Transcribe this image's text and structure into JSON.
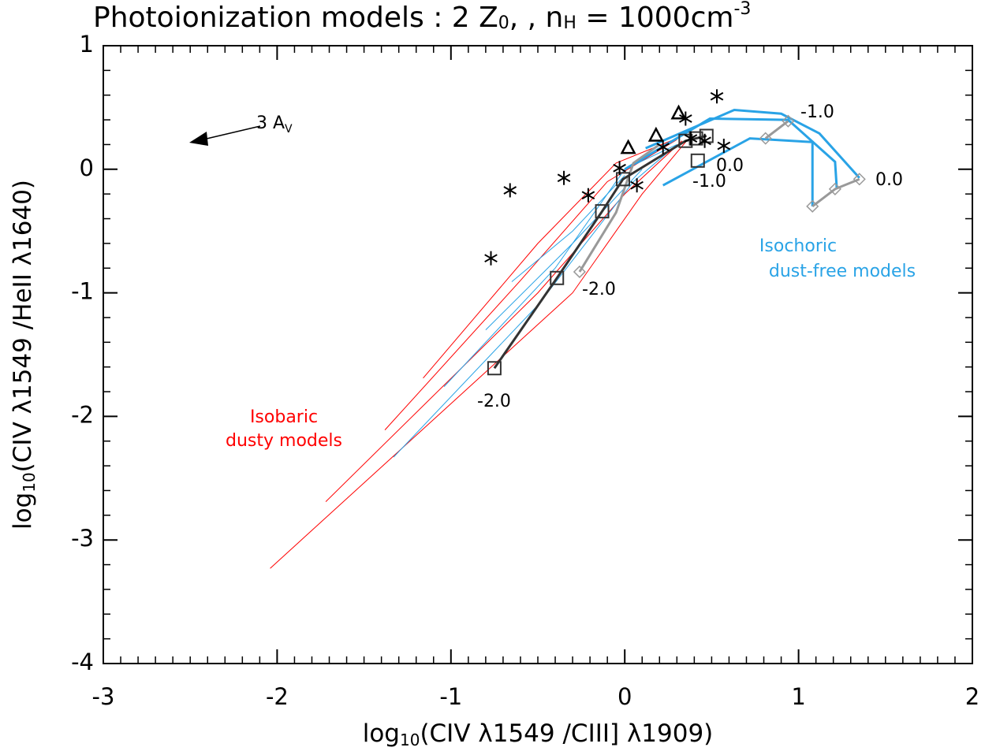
{
  "chart_data": {
    "type": "line",
    "title_parts": [
      "Photoionization models : 2 Z",
      "0",
      ", , n",
      "H",
      " = 1000cm",
      "-3"
    ],
    "x_label_parts": [
      "log",
      "10",
      "(CIV λ1549 /CIII] λ1909)"
    ],
    "y_label_parts": [
      "log",
      "10",
      "(CIV λ1549 /HeII λ1640)"
    ],
    "xlim": [
      -3,
      2
    ],
    "xticks": [
      -3,
      -2,
      -1,
      0,
      1,
      2
    ],
    "ylim": [
      -4,
      1
    ],
    "yticks": [
      -4,
      -3,
      -2,
      -1,
      0,
      1
    ],
    "series": [
      {
        "color": "#ff0000",
        "line_width": 1,
        "marker": "none",
        "x": [
          -2.04,
          -0.3,
          0.1,
          0.35
        ],
        "y": [
          -3.23,
          -1.0,
          -0.2,
          0.22
        ]
      },
      {
        "color": "#ff0000",
        "line_width": 1,
        "marker": "none",
        "x": [
          -1.72,
          -0.5,
          0.0,
          0.33
        ],
        "y": [
          -2.69,
          -1.0,
          -0.2,
          0.23
        ]
      },
      {
        "color": "#ff0000",
        "line_width": 1,
        "marker": "none",
        "x": [
          -1.38,
          -0.6,
          -0.1,
          0.3
        ],
        "y": [
          -2.11,
          -0.9,
          -0.1,
          0.24
        ]
      },
      {
        "color": "#ff0000",
        "line_width": 1,
        "marker": "none",
        "x": [
          -1.16,
          -0.5,
          -0.05,
          0.3
        ],
        "y": [
          -1.69,
          -0.6,
          0.05,
          0.25
        ]
      },
      {
        "color": "#29a3e6",
        "line_width": 1,
        "marker": "none",
        "x": [
          -1.33,
          -0.5,
          0.05,
          0.3
        ],
        "y": [
          -2.33,
          -1.1,
          -0.1,
          0.2
        ]
      },
      {
        "color": "#29a3e6",
        "line_width": 1,
        "marker": "none",
        "x": [
          -1.04,
          -0.4,
          0.0,
          0.3
        ],
        "y": [
          -1.76,
          -0.8,
          0.0,
          0.2
        ]
      },
      {
        "color": "#29a3e6",
        "line_width": 1,
        "marker": "none",
        "x": [
          -0.65,
          -0.3,
          0.0
        ],
        "y": [
          -0.91,
          -0.5,
          -0.05
        ]
      },
      {
        "color": "#29a3e6",
        "line_width": 1,
        "marker": "none",
        "x": [
          -0.8,
          -0.3,
          0.1
        ],
        "y": [
          -1.3,
          -0.6,
          0.0
        ]
      },
      {
        "color": "#29a3e6",
        "line_width": 3,
        "marker": "none",
        "x": [
          0.12,
          0.63,
          0.9,
          1.12,
          1.35
        ],
        "y": [
          0.17,
          0.48,
          0.45,
          0.29,
          -0.07
        ]
      },
      {
        "color": "#29a3e6",
        "line_width": 3,
        "marker": "none",
        "x": [
          0.0,
          0.49,
          0.94,
          1.21,
          1.22
        ],
        "y": [
          0.0,
          0.41,
          0.4,
          0.06,
          -0.16
        ]
      },
      {
        "color": "#29a3e6",
        "line_width": 3,
        "marker": "none",
        "x": [
          0.22,
          0.72,
          1.08,
          1.08
        ],
        "y": [
          -0.13,
          0.25,
          0.22,
          -0.3
        ]
      },
      {
        "color": "#999999",
        "line_width": 3,
        "marker": "none",
        "x": [
          -0.26,
          -0.05,
          0.05,
          0.2
        ],
        "y": [
          -0.83,
          -0.35,
          0.05,
          0.2
        ]
      },
      {
        "color": "#999999",
        "line_width": 3,
        "marker": "diamond",
        "x": [
          1.08,
          1.21,
          1.35
        ],
        "y": [
          -0.3,
          -0.16,
          -0.08
        ]
      },
      {
        "color": "#999999",
        "line_width": 3,
        "marker": "diamond",
        "x": [
          0.81,
          0.94
        ],
        "y": [
          0.25,
          0.39
        ]
      },
      {
        "color": "#999999",
        "line_width": 0,
        "marker": "diamond",
        "x": [
          -0.26
        ],
        "y": [
          -0.83
        ]
      },
      {
        "color": "#333333",
        "line_width": 3,
        "marker": "square",
        "x": [
          -0.75,
          -0.39,
          -0.13,
          -0.01,
          0.35,
          0.41,
          0.47
        ],
        "y": [
          -1.61,
          -0.88,
          -0.34,
          -0.08,
          0.23,
          0.25,
          0.27
        ]
      },
      {
        "color": "#333333",
        "line_width": 0,
        "marker": "square",
        "x": [
          0.42
        ],
        "y": [
          0.07
        ]
      },
      {
        "color": "#000000",
        "line_width": 0,
        "marker": "asterisk",
        "x": [
          0.53,
          -0.66,
          -0.35,
          -0.21,
          -0.77,
          0.35,
          0.57,
          0.22,
          0.07,
          -0.03,
          0.38,
          0.46
        ],
        "y": [
          0.59,
          -0.17,
          -0.07,
          -0.21,
          -0.72,
          0.41,
          0.19,
          0.18,
          -0.13,
          0.01,
          0.25,
          0.23
        ]
      },
      {
        "color": "#000000",
        "line_width": 0,
        "marker": "triangle",
        "x": [
          0.02,
          0.18,
          0.31
        ],
        "y": [
          0.17,
          0.27,
          0.45
        ]
      }
    ],
    "annotations": [
      {
        "text": "-2.0",
        "color": "#000000"
      },
      {
        "text": "-2.0",
        "color": "#000000"
      },
      {
        "text": "-1.0",
        "color": "#000000"
      },
      {
        "text": "0.0",
        "color": "#000000"
      },
      {
        "text": "-1.0",
        "color": "#000000"
      },
      {
        "text": "0.0",
        "color": "#000000"
      },
      {
        "text": "Isobaric",
        "color": "#ff0000"
      },
      {
        "text": "dusty models",
        "color": "#ff0000"
      },
      {
        "text": "Isochoric",
        "color": "#29a3e6"
      },
      {
        "text": "dust-free models",
        "color": "#29a3e6"
      }
    ],
    "arrow_label_parts": [
      "3 A",
      "V"
    ]
  }
}
